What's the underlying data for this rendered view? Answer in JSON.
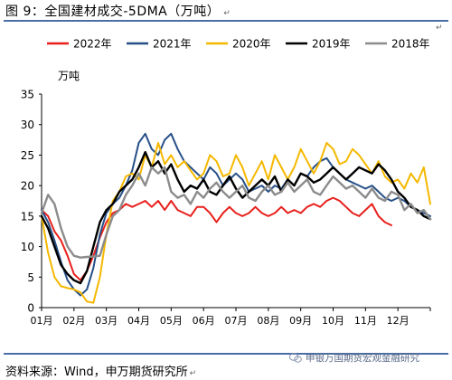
{
  "figure": {
    "title": "图 9：全国建材成交-5DMA（万吨）",
    "source": "资料来源：Wind，申万期货研究所",
    "watermark": "申银万国期货宏观金融研究",
    "return_mark": "↵"
  },
  "chart_data": {
    "type": "line",
    "title": "",
    "ylabel": "万吨",
    "xlabel": "",
    "ylim": [
      0,
      35
    ],
    "yticks": [
      0,
      5,
      10,
      15,
      20,
      25,
      30,
      35
    ],
    "xticks": [
      "01月",
      "02月",
      "03月",
      "04月",
      "05月",
      "06月",
      "07月",
      "08月",
      "09月",
      "10月",
      "11月",
      "12月"
    ],
    "x_domain": [
      1,
      13
    ],
    "grid": false,
    "legend_position": "top",
    "series": [
      {
        "name": "2022年",
        "color": "#e8201c",
        "width": 2,
        "x": [
          1.0,
          1.2,
          1.4,
          1.6,
          1.8,
          2.0,
          2.2,
          2.4,
          2.6,
          2.8,
          3.0,
          3.2,
          3.4,
          3.6,
          3.8,
          4.0,
          4.2,
          4.4,
          4.6,
          4.8,
          5.0,
          5.2,
          5.4,
          5.6,
          5.8,
          6.0,
          6.2,
          6.4,
          6.6,
          6.8,
          7.0,
          7.2,
          7.4,
          7.6,
          7.8,
          8.0,
          8.2,
          8.4,
          8.6,
          8.8,
          9.0,
          9.2,
          9.4,
          9.6,
          9.8,
          10.0,
          10.2,
          10.4,
          10.6,
          10.8,
          11.0,
          11.2,
          11.4,
          11.6,
          11.8
        ],
        "y": [
          16,
          15,
          12.5,
          11,
          8.5,
          5.5,
          4.5,
          6,
          8.5,
          11.5,
          14,
          15.5,
          16,
          17,
          16.5,
          17,
          17.5,
          16.5,
          17.5,
          16,
          17.5,
          16,
          15.5,
          15,
          16.5,
          16.5,
          15.5,
          14,
          15.5,
          16.5,
          15.5,
          15,
          15.5,
          16.5,
          15.5,
          15,
          15.5,
          16.5,
          15.5,
          16,
          15.5,
          16.5,
          17,
          16.5,
          17.5,
          18,
          17.5,
          16.5,
          15.5,
          15,
          16,
          17,
          15,
          14,
          13.5
        ]
      },
      {
        "name": "2021年",
        "color": "#264f87",
        "width": 2,
        "x": [
          1.0,
          1.2,
          1.4,
          1.6,
          1.8,
          2.0,
          2.2,
          2.4,
          2.6,
          2.8,
          3.0,
          3.2,
          3.4,
          3.6,
          3.8,
          4.0,
          4.2,
          4.4,
          4.6,
          4.8,
          5.0,
          5.2,
          5.4,
          5.6,
          5.8,
          6.0,
          6.2,
          6.4,
          6.6,
          6.8,
          7.0,
          7.2,
          7.4,
          7.6,
          7.8,
          8.0,
          8.2,
          8.4,
          8.6,
          8.8,
          9.0,
          9.2,
          9.4,
          9.6,
          9.8,
          10.0,
          10.2,
          10.4,
          10.6,
          10.8,
          11.0,
          11.2,
          11.4,
          11.6,
          11.8,
          12.0,
          12.2,
          12.4,
          12.6,
          12.8,
          13.0
        ],
        "y": [
          16,
          14,
          11,
          7.5,
          4.5,
          3,
          2,
          3,
          6.5,
          12,
          15.5,
          17,
          18,
          20,
          22.5,
          27,
          28.5,
          26,
          25,
          27.5,
          28.5,
          26,
          24,
          23,
          22,
          21,
          23,
          22,
          20,
          21,
          22,
          21,
          19,
          19.5,
          20,
          19,
          20,
          19.5,
          21,
          20,
          22,
          21.5,
          23,
          24,
          24.5,
          23,
          22,
          21,
          20.5,
          20,
          19.5,
          20,
          19,
          18,
          17.5,
          18,
          17.5,
          16.5,
          16,
          15.5,
          15
        ]
      },
      {
        "name": "2020年",
        "color": "#f5b800",
        "width": 2,
        "x": [
          1.0,
          1.2,
          1.4,
          1.6,
          1.8,
          2.0,
          2.2,
          2.4,
          2.6,
          2.8,
          3.0,
          3.2,
          3.4,
          3.6,
          3.8,
          4.0,
          4.2,
          4.4,
          4.6,
          4.8,
          5.0,
          5.2,
          5.4,
          5.6,
          5.8,
          6.0,
          6.2,
          6.4,
          6.6,
          6.8,
          7.0,
          7.2,
          7.4,
          7.6,
          7.8,
          8.0,
          8.2,
          8.4,
          8.6,
          8.8,
          9.0,
          9.2,
          9.4,
          9.6,
          9.8,
          10.0,
          10.2,
          10.4,
          10.6,
          10.8,
          11.0,
          11.2,
          11.4,
          11.6,
          11.8,
          12.0,
          12.2,
          12.4,
          12.6,
          12.8,
          13.0
        ],
        "y": [
          15,
          9,
          5,
          3.5,
          3.2,
          3,
          2.5,
          1,
          0.8,
          5,
          12,
          17.5,
          19,
          21.5,
          22,
          21,
          25,
          23,
          27,
          23.5,
          25,
          23,
          24,
          22.5,
          21,
          22,
          25,
          24,
          21.5,
          22,
          25,
          23,
          20,
          22,
          24,
          21,
          25,
          23,
          21,
          23,
          26,
          24,
          22,
          24,
          27,
          26,
          23.5,
          24,
          26,
          25,
          23.5,
          22,
          24,
          21.5,
          20.5,
          21,
          19.5,
          22,
          20.5,
          23,
          17
        ]
      },
      {
        "name": "2019年",
        "color": "#000000",
        "width": 2.4,
        "x": [
          1.0,
          1.2,
          1.4,
          1.6,
          1.8,
          2.0,
          2.2,
          2.4,
          2.6,
          2.8,
          3.0,
          3.2,
          3.4,
          3.6,
          3.8,
          4.0,
          4.2,
          4.4,
          4.6,
          4.8,
          5.0,
          5.2,
          5.4,
          5.6,
          5.8,
          6.0,
          6.2,
          6.4,
          6.6,
          6.8,
          7.0,
          7.2,
          7.4,
          7.6,
          7.8,
          8.0,
          8.2,
          8.4,
          8.6,
          8.8,
          9.0,
          9.2,
          9.4,
          9.6,
          9.8,
          10.0,
          10.2,
          10.4,
          10.6,
          10.8,
          11.0,
          11.2,
          11.4,
          11.6,
          11.8,
          12.0,
          12.2,
          12.4,
          12.6,
          12.8,
          13.0
        ],
        "y": [
          15,
          13,
          10,
          7,
          5.5,
          4.5,
          4,
          6,
          10,
          14,
          16,
          17,
          19,
          20,
          21,
          23,
          25.5,
          23,
          24,
          22,
          23.5,
          21,
          19,
          20,
          19.5,
          21,
          19,
          18.5,
          20,
          21.5,
          19.5,
          18,
          19,
          20,
          21,
          20,
          21.5,
          19,
          21,
          20,
          22,
          21.5,
          20.5,
          21,
          22,
          23,
          22,
          21,
          22,
          23,
          22.5,
          22,
          23.5,
          22.5,
          21,
          19,
          18,
          16.5,
          16,
          15,
          14.5
        ]
      },
      {
        "name": "2018年",
        "color": "#8c8c8c",
        "width": 2.4,
        "x": [
          1.0,
          1.2,
          1.4,
          1.6,
          1.8,
          2.0,
          2.2,
          2.4,
          2.6,
          2.8,
          3.0,
          3.2,
          3.4,
          3.6,
          3.8,
          4.0,
          4.2,
          4.4,
          4.6,
          4.8,
          5.0,
          5.2,
          5.4,
          5.6,
          5.8,
          6.0,
          6.2,
          6.4,
          6.6,
          6.8,
          7.0,
          7.2,
          7.4,
          7.6,
          7.8,
          8.0,
          8.2,
          8.4,
          8.6,
          8.8,
          9.0,
          9.2,
          9.4,
          9.6,
          9.8,
          10.0,
          10.2,
          10.4,
          10.6,
          10.8,
          11.0,
          11.2,
          11.4,
          11.6,
          11.8,
          12.0,
          12.2,
          12.4,
          12.6,
          12.8,
          13.0
        ],
        "y": [
          15.5,
          18.5,
          17,
          13,
          10,
          8.5,
          8.2,
          8.3,
          8.4,
          8.5,
          12,
          15,
          16,
          18.5,
          20,
          22,
          20,
          23,
          22,
          23,
          19,
          18,
          18.5,
          17,
          19,
          18,
          19.5,
          20.5,
          19,
          18,
          19,
          20,
          18,
          17.5,
          19,
          20,
          18.5,
          19,
          20.5,
          19,
          20,
          21,
          19,
          18.5,
          20,
          21.5,
          20.5,
          19.5,
          20,
          19,
          18,
          19.5,
          18,
          17.5,
          19,
          18.5,
          16,
          17,
          15.5,
          16,
          14.5
        ]
      }
    ]
  }
}
